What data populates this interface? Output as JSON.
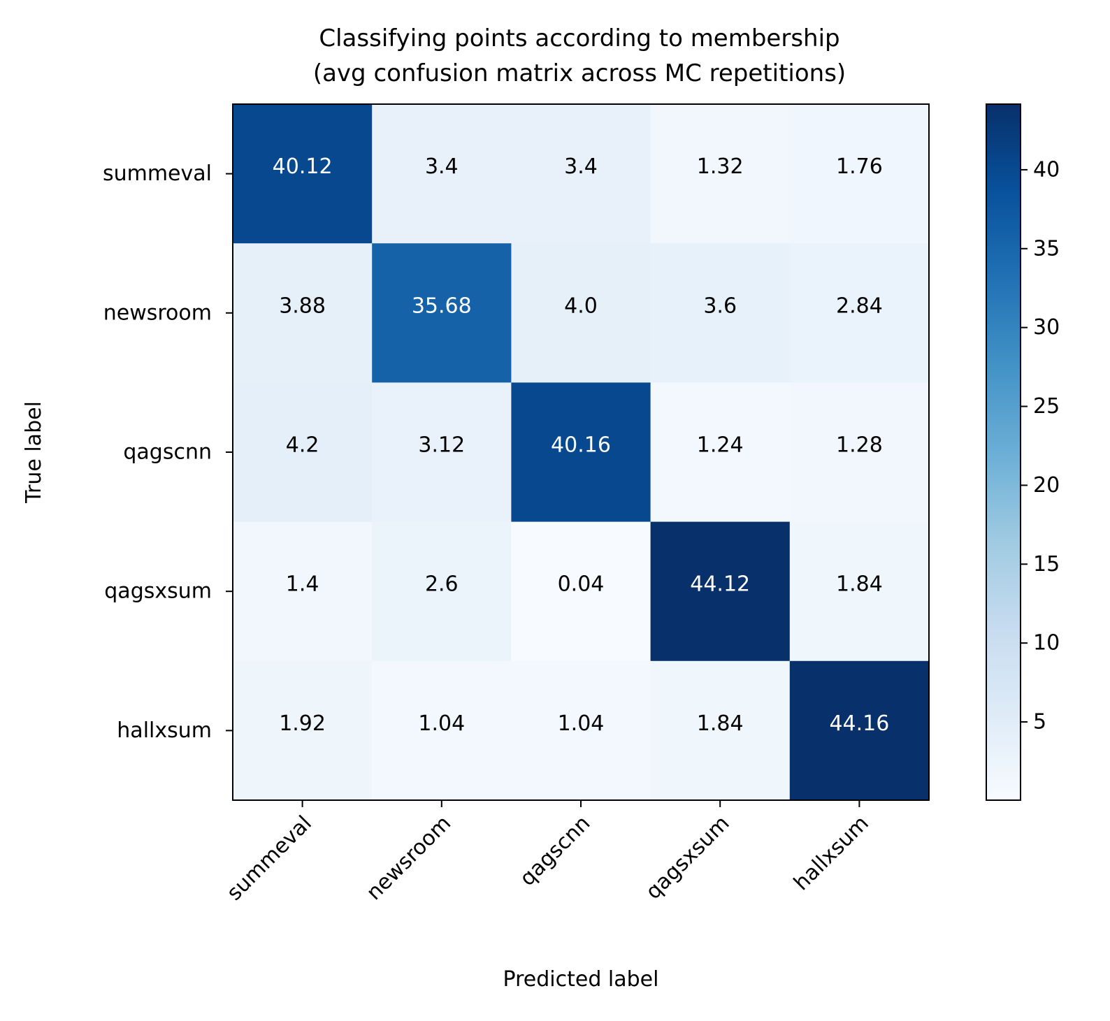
{
  "chart_data": {
    "type": "heatmap",
    "title": "Classifying points according to membership\n(avg confusion matrix across MC repetitions)",
    "title_lines": [
      "Classifying points according to membership",
      "(avg confusion matrix across MC repetitions)"
    ],
    "xlabel": "Predicted label",
    "ylabel": "True label",
    "x_categories": [
      "summeval",
      "newsroom",
      "qagscnn",
      "qagsxsum",
      "hallxsum"
    ],
    "y_categories": [
      "summeval",
      "newsroom",
      "qagscnn",
      "qagsxsum",
      "hallxsum"
    ],
    "matrix": [
      [
        40.12,
        3.4,
        3.4,
        1.32,
        1.76
      ],
      [
        3.88,
        35.68,
        4.0,
        3.6,
        2.84
      ],
      [
        4.2,
        3.12,
        40.16,
        1.24,
        1.28
      ],
      [
        1.4,
        2.6,
        0.04,
        44.12,
        1.84
      ],
      [
        1.92,
        1.04,
        1.04,
        1.84,
        44.16
      ]
    ],
    "matrix_labels": [
      [
        "40.12",
        "3.4",
        "3.4",
        "1.32",
        "1.76"
      ],
      [
        "3.88",
        "35.68",
        "4.0",
        "3.6",
        "2.84"
      ],
      [
        "4.2",
        "3.12",
        "40.16",
        "1.24",
        "1.28"
      ],
      [
        "1.4",
        "2.6",
        "0.04",
        "44.12",
        "1.84"
      ],
      [
        "1.92",
        "1.04",
        "1.04",
        "1.84",
        "44.16"
      ]
    ],
    "colormap": "Blues",
    "value_range": [
      0.04,
      44.16
    ],
    "colorbar_ticks": [
      5,
      10,
      15,
      20,
      25,
      30,
      35,
      40
    ],
    "colorbar_tick_labels": [
      "5",
      "10",
      "15",
      "20",
      "25",
      "30",
      "35",
      "40"
    ],
    "x_tick_rotation_deg": 45,
    "grid": false,
    "colors": {
      "text_dark": "#000000",
      "text_light": "#ffffff",
      "axis": "#000000",
      "blues_stops": [
        "#f7fbff",
        "#deebf7",
        "#c6dbef",
        "#9ecae1",
        "#6baed6",
        "#4292c6",
        "#2171b5",
        "#08519c",
        "#08306b"
      ]
    }
  }
}
